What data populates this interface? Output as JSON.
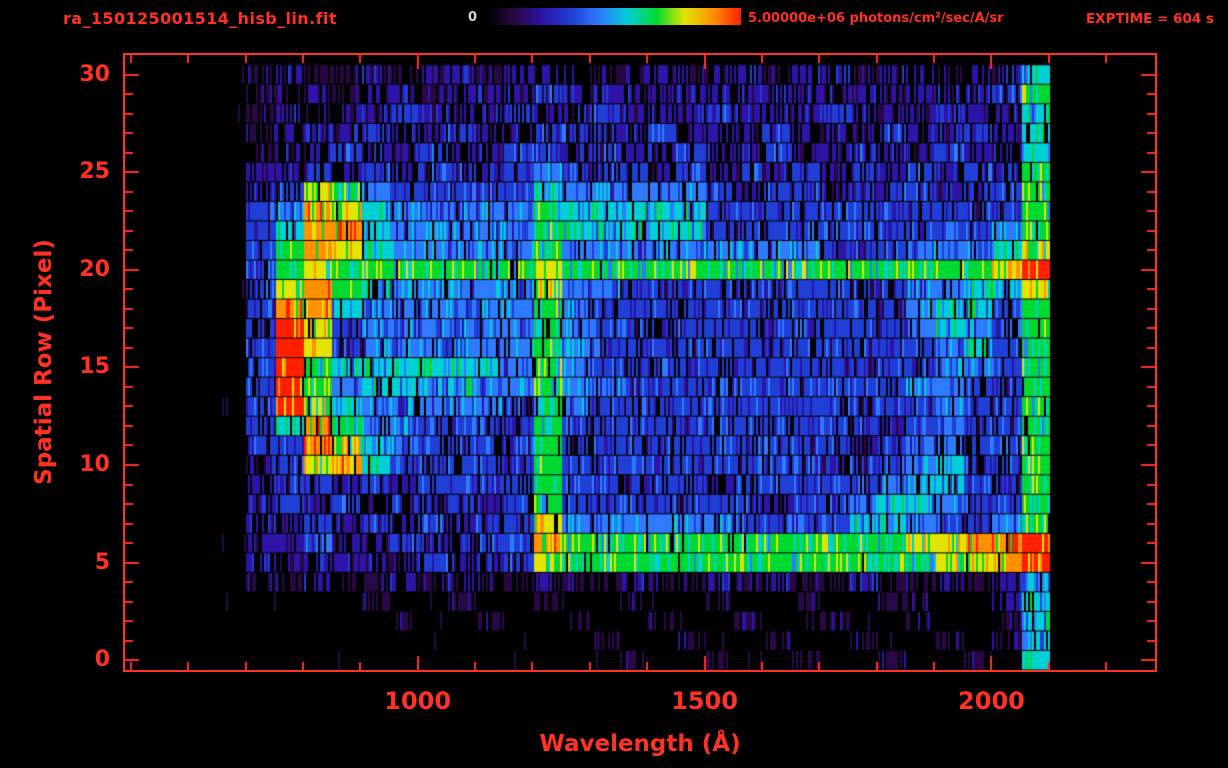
{
  "header": {
    "title": "ra_150125001514_hisb_lin.fit",
    "colorbar_min_label": "0",
    "colorbar_max_label": "5.00000e+06 photons/cm²/sec/A/sr",
    "exptime_label": "EXPTIME = 604 s"
  },
  "colors": {
    "background": "#000000",
    "accent_red": "#ff3224",
    "colorbar_min_text": "#d8d8d8"
  },
  "chart_data": {
    "type": "heatmap",
    "title": "ra_150125001514_hisb_lin.fit",
    "xlabel": "Wavelength (Å)",
    "ylabel": "Spatial Row (Pixel)",
    "x_axis": {
      "min": 490,
      "max": 2285,
      "major_ticks": [
        1000,
        1500,
        2000
      ],
      "minor_tick_interval": 100
    },
    "y_axis": {
      "min": -0.5,
      "max": 31.0,
      "major_ticks": [
        0,
        5,
        10,
        15,
        20,
        25,
        30
      ]
    },
    "colorbar": {
      "min": 0,
      "max": 5000000,
      "units": "photons/cm²/sec/A/sr",
      "position": "top"
    },
    "exptime_s": 604,
    "grid_on": false,
    "legend": "none",
    "wavelength_start": 650,
    "bin_width": 50,
    "n_rows": 31,
    "grid_encoding": "Each string is one spatial row (bottom row 0 first). Each character is the intensity level 0-9 of one 50 Å wavelength bin starting at 650 Å; level 9 = 5.0e6 photons/cm²/sec/A/sr, level 0 = 0. Spaces are padding only.",
    "features": [
      "Bright red/orange airglow blob 750-900 Å spanning rows 10-24 with darker core near rows 16-17",
      "Strong vertical emission line (Lyman-alpha ~1216 Å) spanning rows ~5-24, orange at base",
      "Green continuum band along row 20 from ~750 Å to ~2060 Å, red at right end",
      "Green/yellow continuum band along rows 5-6 from ~1216 Å to ~2060 Å, orange-red at right end",
      "Faint diagonal streak rising from ~1750 Å row 7 to ~1950 Å row 19",
      "Vertical green edge line at ~2050-2100 Å spanning all rows",
      "Diffuse blue noise background over rows 4-30; sparse purple dots on rows 0-3"
    ],
    "grid": [
      "00000 00000 00001 00100 10010 0105",
      "00000 00000 00010 01001 00100 1015",
      "00000 01001 00100 10010 01001 0015",
      "00000 10010 01001 00100 10011 0025",
      "01121 12121 12112 11212 11211 2125",
      "02222 22322 37666 66666 66666 7789",
      "02232 23223 38666 66666 66667 7889",
      "02232 32323 37444 44433 33554 3346",
      "02323 23232 36333 33332 33455 4336",
      "02332 32333 36333 33233 33345 5336",
      "02378 53333 36333 33333 32334 5336",
      "03387 54333 36333 33333 33234 4336",
      "03586 44333 36333 33333 33323 4336",
      "03975 44444 36433 33333 33333 4336",
      "03964 55454 46443 33333 33334 4336",
      "03965 55555 46433 33333 33333 4436",
      "03973 44444 46433 33333 33333 4536",
      "03973 44444 46433 33333 33334 5436",
      "03885 44444 46433 33333 33334 5536",
      "03786 54444 47443 33333 33334 4557",
      "03676 66666 67666 66666 66666 6679",
      "03687 54444 46444 44444 43334 4457",
      "03588 54444 46555 55333 33333 3346",
      "03487 54444 46555 55333 33333 3336",
      "02376 43333 35444 44323 32333 2336",
      "02232 32332 34333 23232 32323 2326",
      "01223 22322 33232 23223 22322 3225",
      "01222 32232 23322 32223 22232 2325",
      "01212 23222 32232 22322 23222 3225",
      "01121 22122 23222 22222 22222 2236",
      "01211 21221 22212 21221 22122 1225"
    ],
    "colormap": [
      "#000000",
      "#2a0845",
      "#2e14a8",
      "#1f3fd6",
      "#2e7bff",
      "#00cfd6",
      "#00d932",
      "#e0e400",
      "#ff9100",
      "#ff2000"
    ]
  }
}
